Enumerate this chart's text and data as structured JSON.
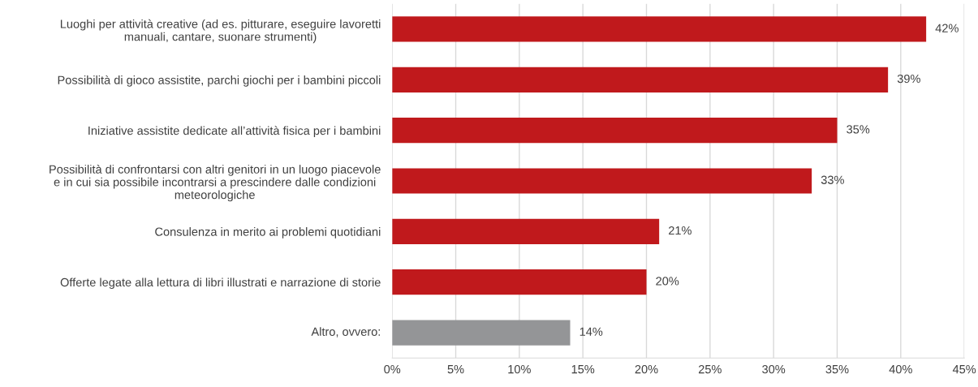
{
  "chart_data": {
    "type": "bar",
    "orientation": "horizontal",
    "categories": [
      "Luoghi per attività creative (ad es. pitturare, eseguire lavoretti\nmanuali, cantare, suonare strumenti)",
      "Possibilità di gioco assistite, parchi giochi per i bambini piccoli",
      "Iniziative assistite dedicate all’attività fisica per i bambini",
      "Possibilità di confrontarsi con altri genitori in un luogo piacevole\ne in cui sia possibile incontrarsi a prescindere dalle condizioni\nmeteorologiche",
      "Consulenza in merito ai problemi quotidiani",
      "Offerte legate alla lettura di libri illustrati e narrazione di storie",
      "Altro, ovvero"
    ],
    "annotations": [
      ":"
    ],
    "values": [
      42,
      39,
      35,
      33,
      21,
      20,
      14
    ],
    "colors": [
      "#c0191c",
      "#c0191c",
      "#c0191c",
      "#c0191c",
      "#c0191c",
      "#c0191c",
      "#949597"
    ],
    "value_labels": [
      "42%",
      "39%",
      "35%",
      "33%",
      "21%",
      "20%",
      "14%"
    ],
    "xlim": [
      0,
      45
    ],
    "xticks": [
      {
        "value": 0,
        "label": "0%"
      },
      {
        "value": 5,
        "label": "5%"
      },
      {
        "value": 10,
        "label": "10%"
      },
      {
        "value": 15,
        "label": "15%"
      },
      {
        "value": 20,
        "label": "20%"
      },
      {
        "value": 25,
        "label": "25%"
      },
      {
        "value": 30,
        "label": "30%"
      },
      {
        "value": 35,
        "label": "35%"
      },
      {
        "value": 40,
        "label": "40%"
      },
      {
        "value": 45,
        "label": "45%"
      }
    ],
    "grid": "x",
    "legend": false
  }
}
